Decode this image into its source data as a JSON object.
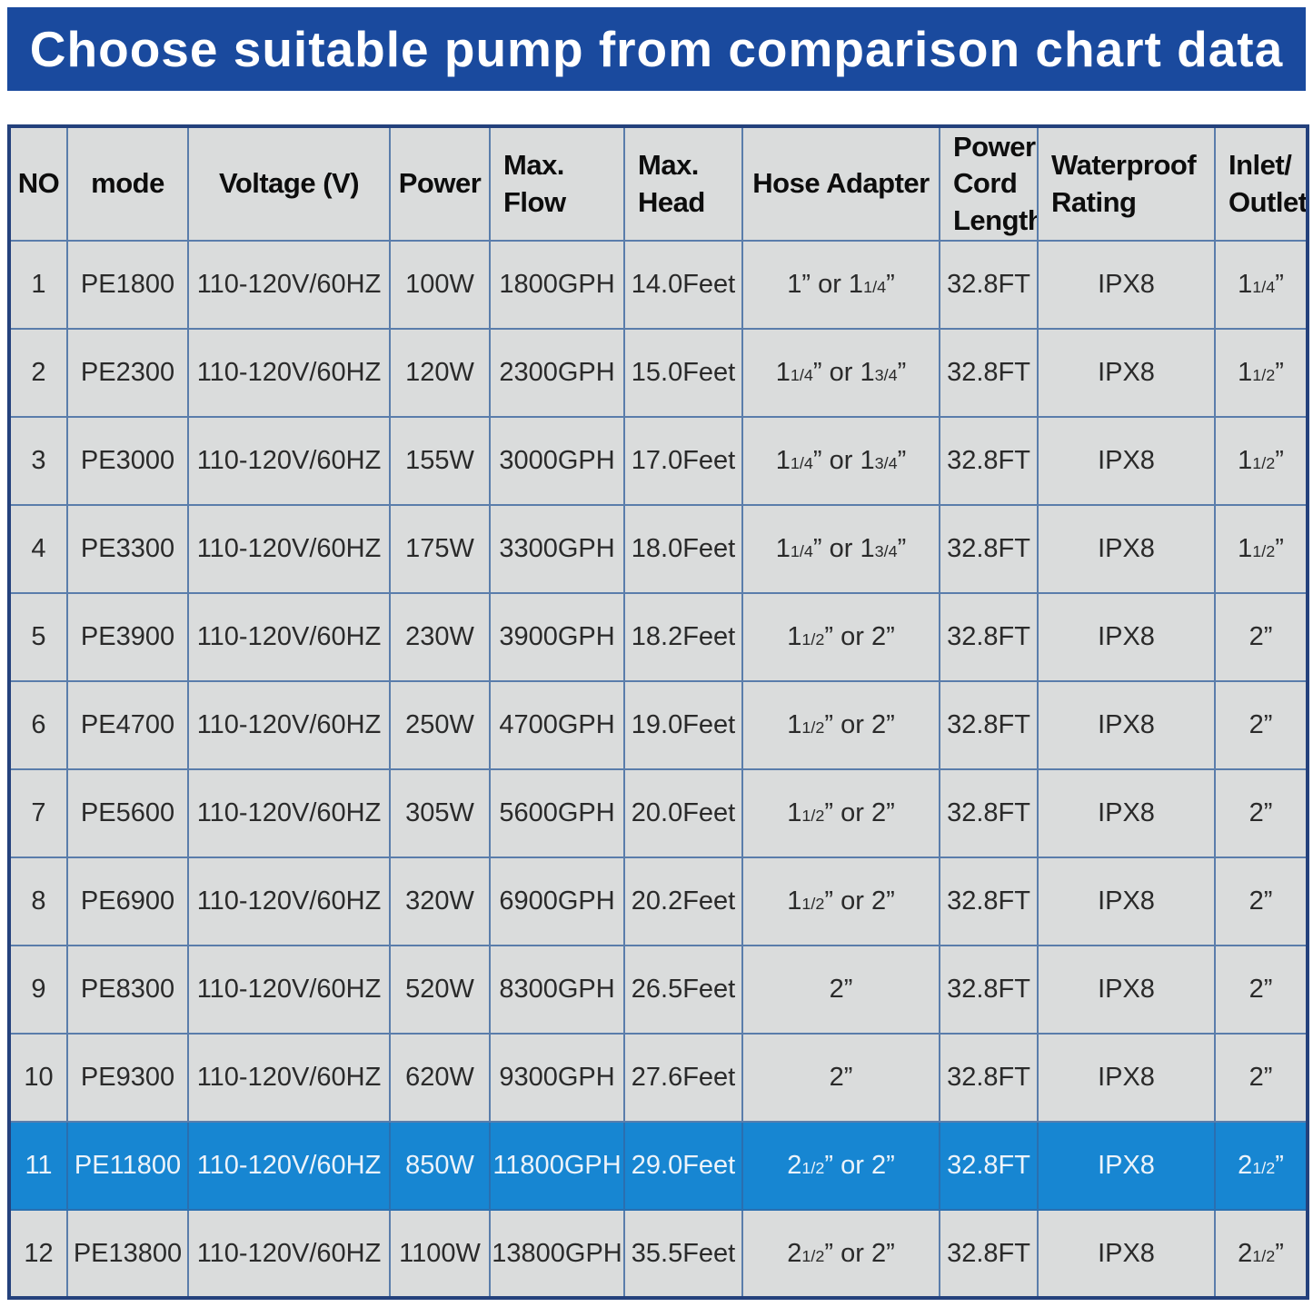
{
  "banner": {
    "title": "Choose suitable pump from comparison chart data",
    "background_color": "#1a4a9e",
    "text_color": "#ffffff"
  },
  "table": {
    "highlight_color": "#1786d2",
    "cell_background": "#dadcdc",
    "inner_border_color": "#5a7dab",
    "outer_border_color": "#24417c",
    "columns": [
      {
        "key": "no",
        "label": "NO"
      },
      {
        "key": "mode",
        "label": "mode"
      },
      {
        "key": "voltage",
        "label": "Voltage (V)"
      },
      {
        "key": "power",
        "label": "Power"
      },
      {
        "key": "max-flow",
        "label": "Max.\nFlow"
      },
      {
        "key": "max-head",
        "label": "Max.\nHead"
      },
      {
        "key": "hose-adapter",
        "label": "Hose Adapter"
      },
      {
        "key": "power-cord-length",
        "label": "Power\nCord\nLength"
      },
      {
        "key": "waterproof-rating",
        "label": "Waterproof\nRating"
      },
      {
        "key": "inlet-outlet",
        "label": "Inlet/\nOutlet"
      }
    ],
    "rows": [
      {
        "highlighted": false,
        "cells": [
          "1",
          "PE1800",
          "110-120V/60HZ",
          "100W",
          "1800GPH",
          "14.0Feet",
          "1” or 1{1/4}”",
          "32.8FT",
          "IPX8",
          "1{1/4}”"
        ]
      },
      {
        "highlighted": false,
        "cells": [
          "2",
          "PE2300",
          "110-120V/60HZ",
          "120W",
          "2300GPH",
          "15.0Feet",
          "1{1/4}” or 1{3/4}”",
          "32.8FT",
          "IPX8",
          "1{1/2}”"
        ]
      },
      {
        "highlighted": false,
        "cells": [
          "3",
          "PE3000",
          "110-120V/60HZ",
          "155W",
          "3000GPH",
          "17.0Feet",
          "1{1/4}” or 1{3/4}”",
          "32.8FT",
          "IPX8",
          "1{1/2}”"
        ]
      },
      {
        "highlighted": false,
        "cells": [
          "4",
          "PE3300",
          "110-120V/60HZ",
          "175W",
          "3300GPH",
          "18.0Feet",
          "1{1/4}” or 1{3/4}”",
          "32.8FT",
          "IPX8",
          "1{1/2}”"
        ]
      },
      {
        "highlighted": false,
        "cells": [
          "5",
          "PE3900",
          "110-120V/60HZ",
          "230W",
          "3900GPH",
          "18.2Feet",
          "1{1/2}” or 2”",
          "32.8FT",
          "IPX8",
          "2”"
        ]
      },
      {
        "highlighted": false,
        "cells": [
          "6",
          "PE4700",
          "110-120V/60HZ",
          "250W",
          "4700GPH",
          "19.0Feet",
          "1{1/2}” or 2”",
          "32.8FT",
          "IPX8",
          "2”"
        ]
      },
      {
        "highlighted": false,
        "cells": [
          "7",
          "PE5600",
          "110-120V/60HZ",
          "305W",
          "5600GPH",
          "20.0Feet",
          "1{1/2}” or 2”",
          "32.8FT",
          "IPX8",
          "2”"
        ]
      },
      {
        "highlighted": false,
        "cells": [
          "8",
          "PE6900",
          "110-120V/60HZ",
          "320W",
          "6900GPH",
          "20.2Feet",
          "1{1/2}” or 2”",
          "32.8FT",
          "IPX8",
          "2”"
        ]
      },
      {
        "highlighted": false,
        "cells": [
          "9",
          "PE8300",
          "110-120V/60HZ",
          "520W",
          "8300GPH",
          "26.5Feet",
          "2”",
          "32.8FT",
          "IPX8",
          "2”"
        ]
      },
      {
        "highlighted": false,
        "cells": [
          "10",
          "PE9300",
          "110-120V/60HZ",
          "620W",
          "9300GPH",
          "27.6Feet",
          "2”",
          "32.8FT",
          "IPX8",
          "2”"
        ]
      },
      {
        "highlighted": true,
        "cells": [
          "11",
          "PE11800",
          "110-120V/60HZ",
          "850W",
          "11800GPH",
          "29.0Feet",
          "2{1/2}” or 2”",
          "32.8FT",
          "IPX8",
          "2{1/2}”"
        ]
      },
      {
        "highlighted": false,
        "cells": [
          "12",
          "PE13800",
          "110-120V/60HZ",
          "1100W",
          "13800GPH",
          "35.5Feet",
          "2{1/2}” or 2”",
          "32.8FT",
          "IPX8",
          "2{1/2}”"
        ]
      }
    ]
  }
}
